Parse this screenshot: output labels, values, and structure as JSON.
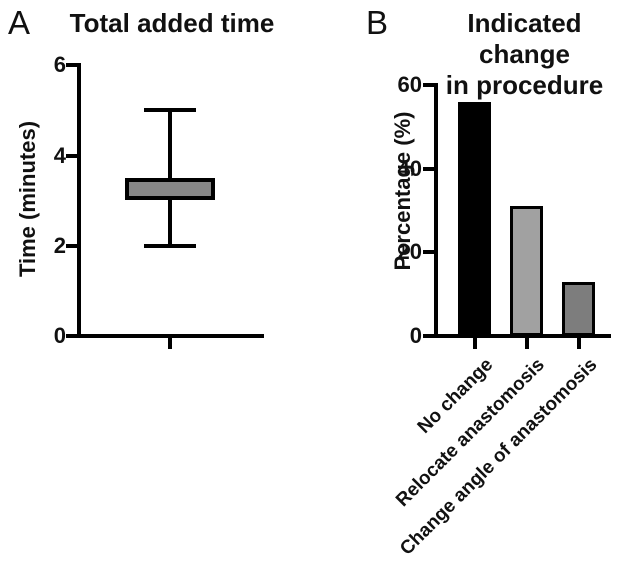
{
  "figure": {
    "panel_a": {
      "label": "A",
      "title": "Total added time",
      "ylabel": "Time (minutes)",
      "ytick_labels": [
        "6",
        "4",
        "2",
        "0"
      ]
    },
    "panel_b": {
      "label": "B",
      "title_line1": "Indicated change",
      "title_line2": "in procedure",
      "ylabel": "Percentage (%)",
      "ytick_labels": [
        "60",
        "40",
        "20",
        "0"
      ],
      "categories": [
        "No change",
        "Relocate anastomosis",
        "Change angle of anastomosis"
      ]
    }
  },
  "colors": {
    "axis": "#000000",
    "box_fill": "#868686",
    "bar_fills": [
      "#000000",
      "#a1a1a1",
      "#7d7d7d"
    ]
  },
  "chart_data": [
    {
      "type": "boxplot",
      "title": "Total added time",
      "xlabel": "",
      "ylabel": "Time (minutes)",
      "ylim": [
        0,
        6
      ],
      "yticks": [
        0,
        2,
        4,
        6
      ],
      "grid": false,
      "legend": "none",
      "series": [
        {
          "name": "Total added time",
          "whisker_min": 2.0,
          "q1": 3.0,
          "q3": 3.5,
          "whisker_max": 5.0,
          "box_fill": "#868686"
        }
      ]
    },
    {
      "type": "bar",
      "title": "Indicated change in procedure",
      "xlabel": "",
      "ylabel": "Percentage (%)",
      "ylim": [
        0,
        60
      ],
      "yticks": [
        0,
        20,
        40,
        60
      ],
      "grid": false,
      "legend": "none",
      "categories": [
        "No change",
        "Relocate anastomosis",
        "Change angle of anastomosis"
      ],
      "values": [
        56,
        31,
        13
      ],
      "bar_colors": [
        "#000000",
        "#a1a1a1",
        "#7d7d7d"
      ]
    }
  ]
}
